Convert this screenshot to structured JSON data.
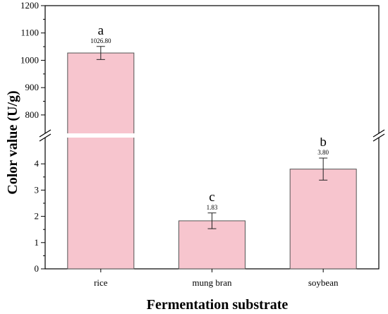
{
  "chart_data": {
    "type": "bar",
    "xlabel": "Fermentation substrate",
    "ylabel": "Color value (U/g)",
    "categories": [
      "rice",
      "mung bran",
      "soybean"
    ],
    "values": [
      1026.8,
      1.83,
      3.8
    ],
    "errors": [
      24,
      0.3,
      0.42
    ],
    "data_labels": [
      "1026.80",
      "1.83",
      "3.80"
    ],
    "significance": [
      "a",
      "c",
      "b"
    ],
    "bar_color": "#f7c5ce",
    "bar_edge": "#555555",
    "y_axis_break": true,
    "lower_segment": {
      "ylim": [
        0,
        5
      ],
      "ticks": [
        "0",
        "1",
        "2",
        "3",
        "4"
      ]
    },
    "upper_segment": {
      "ylim": [
        730,
        1200
      ],
      "ticks": [
        "800",
        "900",
        "1000",
        "1100",
        "1200"
      ]
    }
  }
}
